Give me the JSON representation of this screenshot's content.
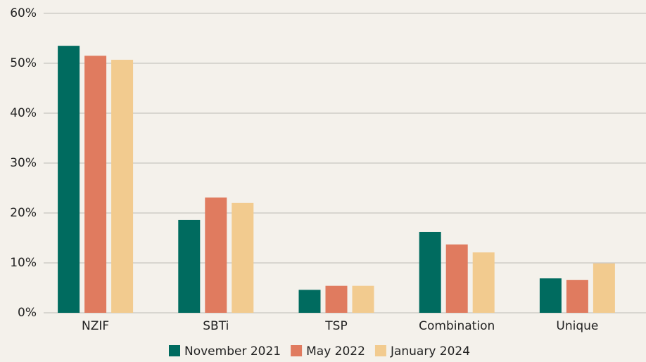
{
  "chart_data": {
    "type": "bar",
    "categories": [
      "NZIF",
      "SBTi",
      "TSP",
      "Combination",
      "Unique"
    ],
    "series": [
      {
        "name": "November 2021",
        "color": "#006b5f",
        "values": [
          53.5,
          18.6,
          4.6,
          16.2,
          6.9
        ]
      },
      {
        "name": "May 2022",
        "color": "#e07b5f",
        "values": [
          51.5,
          23.1,
          5.4,
          13.7,
          6.6
        ]
      },
      {
        "name": "January 2024",
        "color": "#f2cb8f",
        "values": [
          50.7,
          22.0,
          5.4,
          12.1,
          9.9
        ]
      }
    ],
    "ylim": [
      0,
      60
    ],
    "yticks": [
      {
        "value": 0,
        "label": "0%"
      },
      {
        "value": 10,
        "label": "10%"
      },
      {
        "value": 20,
        "label": "20%"
      },
      {
        "value": 30,
        "label": "30%"
      },
      {
        "value": 40,
        "label": "40%"
      },
      {
        "value": 50,
        "label": "50%"
      },
      {
        "value": 60,
        "label": "60%"
      }
    ],
    "grid": true,
    "legend": "bottom"
  }
}
